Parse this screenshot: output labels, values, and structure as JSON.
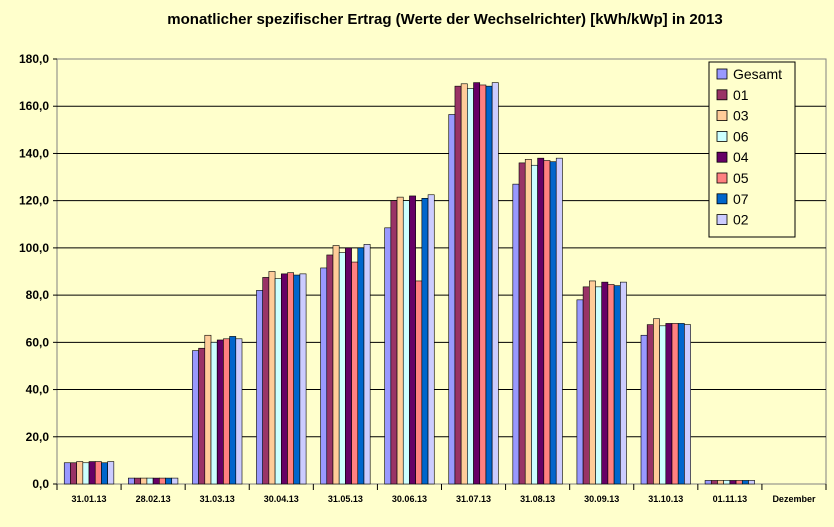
{
  "chart_data": {
    "type": "bar",
    "title": "monatlicher spezifischer Ertrag (Werte der Wechselrichter) [kWh/kWp] in 2013",
    "xlabel": "",
    "ylabel": "",
    "ylim": [
      0,
      180
    ],
    "yticks": [
      "0,0",
      "20,0",
      "40,0",
      "60,0",
      "80,0",
      "100,0",
      "120,0",
      "140,0",
      "160,0",
      "180,0"
    ],
    "grid": true,
    "legend_position": "top-right",
    "categories": [
      "31.01.13",
      "28.02.13",
      "31.03.13",
      "30.04.13",
      "31.05.13",
      "30.06.13",
      "31.07.13",
      "31.08.13",
      "30.09.13",
      "31.10.13",
      "01.11.13",
      "Dezember"
    ],
    "series": [
      {
        "name": "Gesamt",
        "color": "#9999ff",
        "values": [
          9,
          2.5,
          56.5,
          82,
          91.5,
          108.5,
          156.5,
          127,
          78,
          63,
          1.5,
          0
        ]
      },
      {
        "name": "01",
        "color": "#993366",
        "values": [
          9,
          2.5,
          57.5,
          87.5,
          97,
          120,
          168.5,
          136,
          83.5,
          67.5,
          1.5,
          0
        ]
      },
      {
        "name": "03",
        "color": "#ffcc99",
        "values": [
          9.5,
          2.5,
          63,
          90,
          101,
          121.5,
          169.5,
          137.5,
          86,
          70,
          1.5,
          0
        ]
      },
      {
        "name": "06",
        "color": "#ccffff",
        "values": [
          9,
          2.5,
          60,
          87,
          98,
          120,
          167.5,
          135,
          83.5,
          67,
          1.5,
          0
        ]
      },
      {
        "name": "04",
        "color": "#660066",
        "values": [
          9.5,
          2.5,
          61,
          89,
          100,
          122,
          170,
          138,
          85.5,
          68,
          1.5,
          0
        ]
      },
      {
        "name": "05",
        "color": "#ff8080",
        "values": [
          9.5,
          2.5,
          61.5,
          89.5,
          94,
          86,
          169,
          137,
          84.5,
          68,
          1.5,
          0
        ]
      },
      {
        "name": "07",
        "color": "#0066cc",
        "values": [
          9,
          2.5,
          62.5,
          88.5,
          100,
          121,
          168.5,
          136.5,
          84,
          68,
          1.5,
          0
        ]
      },
      {
        "name": "02",
        "color": "#ccccff",
        "values": [
          9.5,
          2.5,
          61.5,
          89,
          101.5,
          122.5,
          170,
          138,
          85.5,
          67.5,
          1.5,
          0
        ]
      }
    ]
  }
}
